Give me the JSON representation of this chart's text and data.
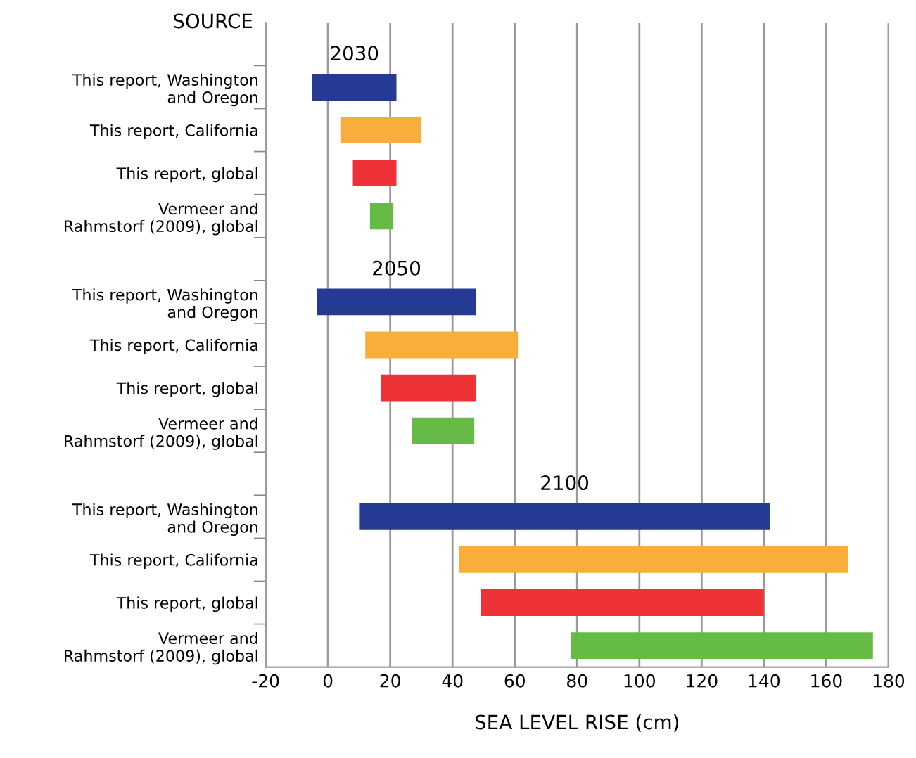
{
  "chart_data": {
    "type": "bar",
    "orientation": "horizontal",
    "ylabel": "SOURCE",
    "xlabel": "SEA LEVEL RISE (cm)",
    "categories": [
      null,
      "This report, Washington\nand Oregon",
      "This report, California",
      "This report, global",
      "Vermeer and\nRahmstorf (2009), global",
      null,
      "This report, Washington\nand Oregon",
      "This report, California",
      "This report, global",
      "Vermeer and\nRahmstorf (2009), global",
      null,
      "This report, Washington\nand Oregon",
      "This report, California",
      "This report, global",
      "Vermeer and\nRahmstorf (2009), global"
    ],
    "base": [
      null,
      -5,
      4,
      8,
      13.5,
      null,
      -3.5,
      12,
      17,
      27,
      null,
      10,
      42,
      49,
      78
    ],
    "values": [
      null,
      27,
      26,
      14,
      7.5,
      null,
      51,
      49,
      30.5,
      20,
      null,
      132,
      125,
      91,
      97
    ],
    "colors": [
      null,
      "#253a93",
      "#f9ad3b",
      "#ee3338",
      "#65bb45",
      null,
      "#253a93",
      "#f9ad3b",
      "#ee3338",
      "#65bb45",
      null,
      "#253a93",
      "#f9ad3b",
      "#ee3338",
      "#65bb45"
    ],
    "annotations": [
      "2030",
      "2050",
      "2100"
    ],
    "xlim": [
      -20,
      180
    ],
    "xticks": [
      -20,
      0,
      20,
      40,
      60,
      80,
      100,
      120,
      140,
      160,
      180
    ],
    "grid": "x",
    "legend": false
  }
}
